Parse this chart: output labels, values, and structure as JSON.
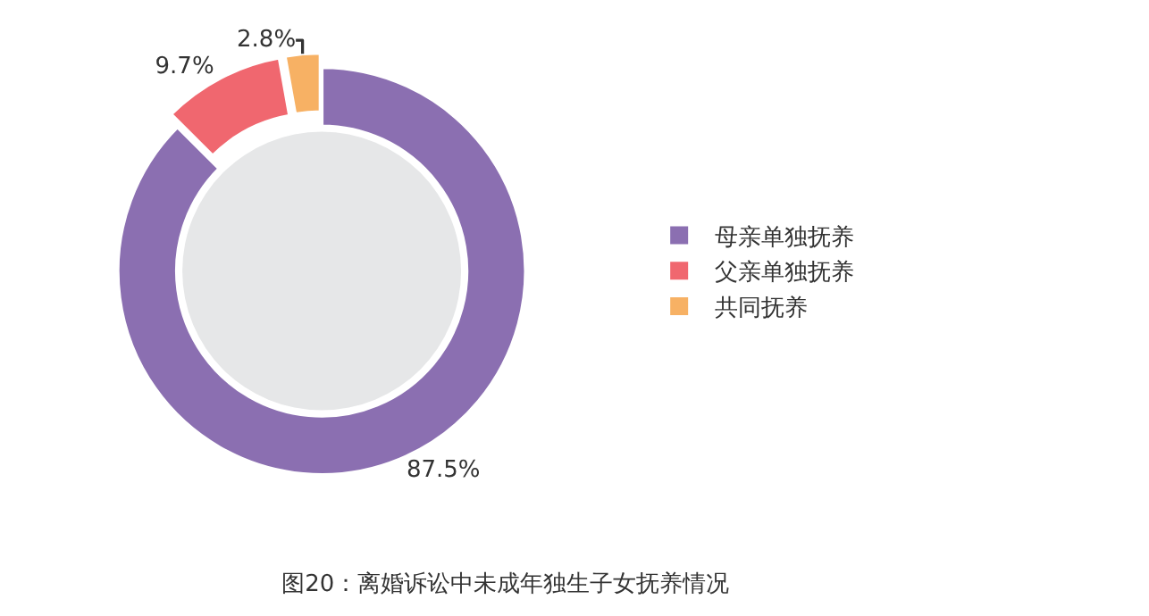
{
  "chart_data": {
    "type": "donut",
    "title": "图20：离婚诉讼中未成年独生子女抚养情况",
    "categories": [
      "母亲单独抚养",
      "父亲单独抚养",
      "共同抚养"
    ],
    "values": [
      87.5,
      9.7,
      2.8
    ],
    "value_labels": [
      "87.5%",
      "9.7%",
      "2.8%"
    ],
    "colors": [
      "#8b6fb1",
      "#f0676f",
      "#f7b164"
    ],
    "legend": "right"
  }
}
